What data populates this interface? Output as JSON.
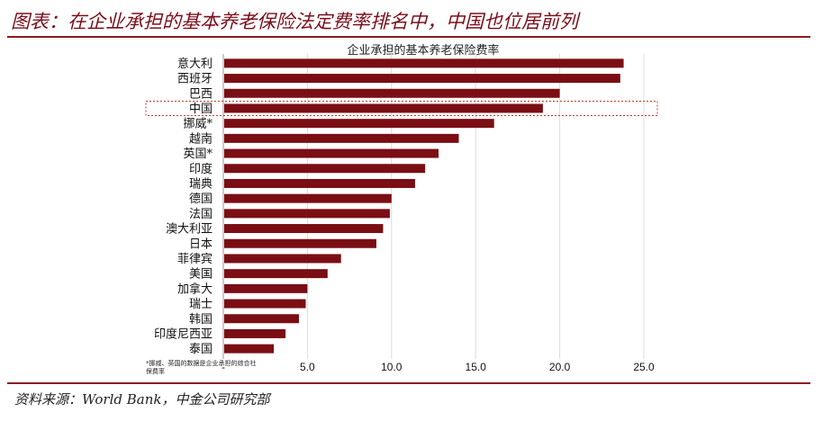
{
  "page": {
    "title": "图表：在企业承担的基本养老保险法定费率排名中，中国也位居前列",
    "source": "资料来源：World Bank，中金公司研究部"
  },
  "chart_data": {
    "type": "bar",
    "orientation": "horizontal",
    "title": "企业承担的基本养老保险费率",
    "categories": [
      "意大利",
      "西班牙",
      "巴西",
      "中国",
      "挪威*",
      "越南",
      "英国*",
      "印度",
      "瑞典",
      "德国",
      "法国",
      "澳大利亚",
      "日本",
      "菲律宾",
      "美国",
      "加拿大",
      "瑞士",
      "韩国",
      "印度尼西亚",
      "泰国"
    ],
    "values": [
      23.8,
      23.6,
      20.0,
      19.0,
      16.1,
      14.0,
      12.8,
      12.0,
      11.4,
      10.0,
      9.9,
      9.5,
      9.1,
      7.0,
      6.2,
      5.0,
      4.9,
      4.5,
      3.7,
      3.0
    ],
    "highlight_category": "中国",
    "xlim": [
      0,
      25
    ],
    "xticks": [
      0,
      5,
      10,
      15,
      20,
      25
    ],
    "xtick_labels": [
      "-",
      "5.0",
      "10.0",
      "15.0",
      "20.0",
      "25.0"
    ],
    "grid": true,
    "legend": "none",
    "footnote_lines": [
      "*挪威、英国的数据是企业承担的综合社",
      "保费率"
    ],
    "bar_color": "#7a0e14",
    "highlight_color": "#c0392b"
  }
}
